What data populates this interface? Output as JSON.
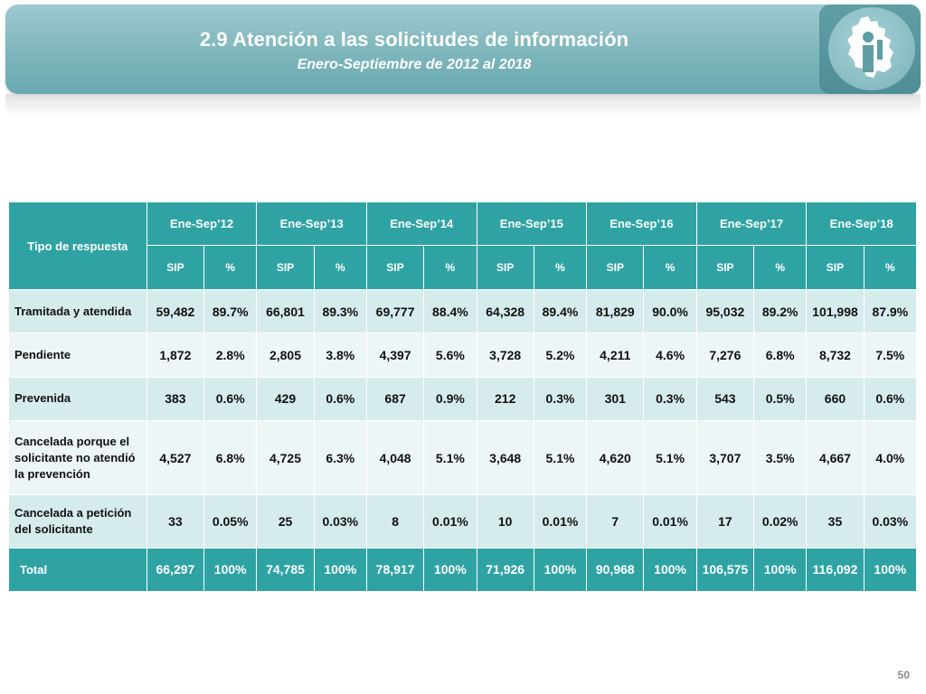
{
  "header": {
    "title": "2.9 Atención a las solicitudes de información",
    "subtitle": "Enero-Septiembre de 2012 al 2018",
    "logo_icon": "mexico-city-map-info-icon"
  },
  "table": {
    "row_header": "Tipo de respuesta",
    "periods": [
      "Ene-Sep’12",
      "Ene-Sep’13",
      "Ene-Sep’14",
      "Ene-Sep’15",
      "Ene-Sep’16",
      "Ene-Sep’17",
      "Ene-Sep’18"
    ],
    "sub_headers": [
      "SIP",
      "%"
    ],
    "rows": [
      {
        "label": "Tramitada y atendida",
        "cells": [
          "59,482",
          "89.7%",
          "66,801",
          "89.3%",
          "69,777",
          "88.4%",
          "64,328",
          "89.4%",
          "81,829",
          "90.0%",
          "95,032",
          "89.2%",
          "101,998",
          "87.9%"
        ]
      },
      {
        "label": "Pendiente",
        "cells": [
          "1,872",
          "2.8%",
          "2,805",
          "3.8%",
          "4,397",
          "5.6%",
          "3,728",
          "5.2%",
          "4,211",
          "4.6%",
          "7,276",
          "6.8%",
          "8,732",
          "7.5%"
        ]
      },
      {
        "label": "Prevenida",
        "cells": [
          "383",
          "0.6%",
          "429",
          "0.6%",
          "687",
          "0.9%",
          "212",
          "0.3%",
          "301",
          "0.3%",
          "543",
          "0.5%",
          "660",
          "0.6%"
        ]
      },
      {
        "label": "Cancelada porque el solicitante no atendió la prevención",
        "cells": [
          "4,527",
          "6.8%",
          "4,725",
          "6.3%",
          "4,048",
          "5.1%",
          "3,648",
          "5.1%",
          "4,620",
          "5.1%",
          "3,707",
          "3.5%",
          "4,667",
          "4.0%"
        ]
      },
      {
        "label": "Cancelada a petición del solicitante",
        "cells": [
          "33",
          "0.05%",
          "25",
          "0.03%",
          "8",
          "0.01%",
          "10",
          "0.01%",
          "7",
          "0.01%",
          "17",
          "0.02%",
          "35",
          "0.03%"
        ]
      }
    ],
    "total": {
      "label": "Total",
      "cells": [
        "66,297",
        "100%",
        "74,785",
        "100%",
        "78,917",
        "100%",
        "71,926",
        "100%",
        "90,968",
        "100%",
        "106,575",
        "100%",
        "116,092",
        "100%"
      ]
    }
  },
  "footer": {
    "page_number": "50"
  },
  "colors": {
    "banner": "#7db6bc",
    "table_header": "#2fa3a4",
    "row_dark": "#d6ecec",
    "row_light": "#edf6f6"
  }
}
